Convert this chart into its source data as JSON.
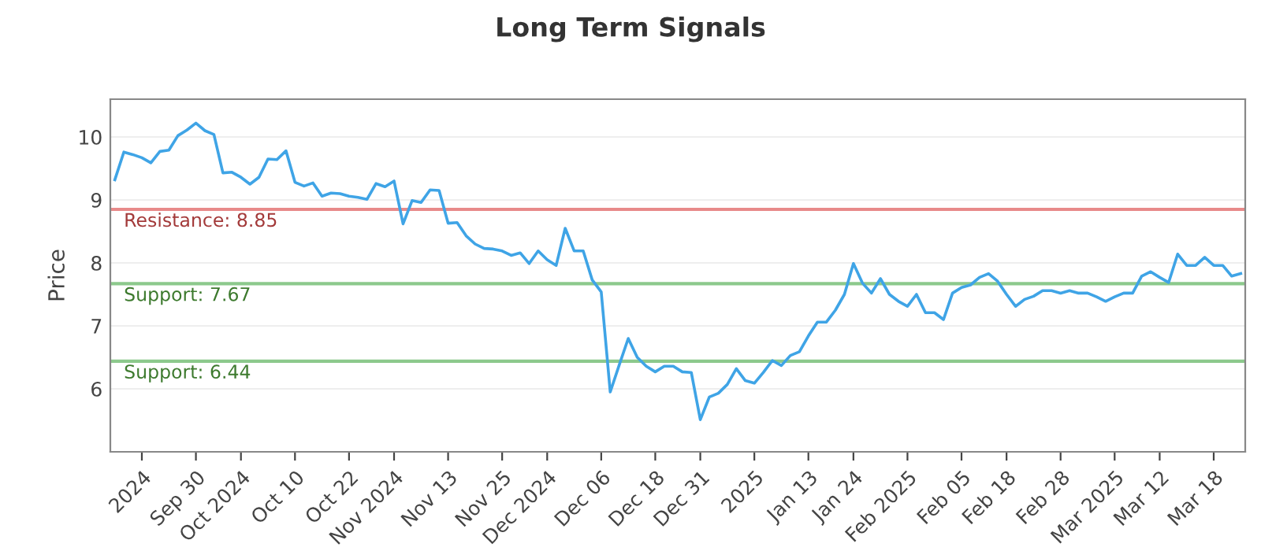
{
  "chart_data": {
    "type": "line",
    "title": "Long Term Signals",
    "ylabel": "Price",
    "categories": [
      null,
      null,
      null,
      "2024",
      null,
      null,
      null,
      null,
      null,
      "Sep 30",
      null,
      null,
      null,
      null,
      "Oct 2024",
      null,
      null,
      null,
      null,
      null,
      "Oct 10",
      null,
      null,
      null,
      null,
      null,
      "Oct 22",
      null,
      null,
      null,
      null,
      "Nov 2024",
      null,
      null,
      null,
      null,
      null,
      "Nov 13",
      null,
      null,
      null,
      null,
      null,
      "Nov 25",
      null,
      null,
      null,
      null,
      "Dec 2024",
      null,
      null,
      null,
      null,
      null,
      "Dec 06",
      null,
      null,
      null,
      null,
      null,
      "Dec 18",
      null,
      null,
      null,
      null,
      "Dec 31",
      null,
      null,
      null,
      null,
      null,
      "2025",
      null,
      null,
      null,
      null,
      null,
      "Jan 13",
      null,
      null,
      null,
      null,
      "Jan 24",
      null,
      null,
      null,
      null,
      null,
      "Feb 2025",
      null,
      null,
      null,
      null,
      null,
      "Feb 05",
      null,
      null,
      null,
      null,
      "Feb 18",
      null,
      null,
      null,
      null,
      null,
      "Feb 28",
      null,
      null,
      null,
      null,
      null,
      "Mar 2025",
      null,
      null,
      null,
      null,
      "Mar 12",
      null,
      null,
      null,
      null,
      null,
      "Mar 18",
      null,
      null,
      null
    ],
    "series": [
      {
        "color": "#3fa4e6",
        "values": [
          9.32,
          9.76,
          9.72,
          9.67,
          9.59,
          9.77,
          9.79,
          10.02,
          10.11,
          10.22,
          10.1,
          10.04,
          9.43,
          9.44,
          9.36,
          9.25,
          9.36,
          9.65,
          9.64,
          9.78,
          9.28,
          9.22,
          9.27,
          9.06,
          9.11,
          9.1,
          9.06,
          9.04,
          9.01,
          9.26,
          9.21,
          9.3,
          8.62,
          8.99,
          8.96,
          9.16,
          9.15,
          8.63,
          8.64,
          8.43,
          8.3,
          8.23,
          8.22,
          8.19,
          8.12,
          8.16,
          7.99,
          8.19,
          8.05,
          7.96,
          8.55,
          8.19,
          8.19,
          7.73,
          7.54,
          5.95,
          6.38,
          6.8,
          6.5,
          6.36,
          6.27,
          6.36,
          6.36,
          6.27,
          6.26,
          5.51,
          5.87,
          5.93,
          6.07,
          6.32,
          6.13,
          6.09,
          6.26,
          6.45,
          6.37,
          6.53,
          6.59,
          6.84,
          7.06,
          7.06,
          7.25,
          7.5,
          7.99,
          7.68,
          7.52,
          7.75,
          7.5,
          7.39,
          7.31,
          7.5,
          7.21,
          7.21,
          7.1,
          7.52,
          7.61,
          7.65,
          7.77,
          7.83,
          7.71,
          7.5,
          7.31,
          7.42,
          7.47,
          7.56,
          7.56,
          7.52,
          7.56,
          7.52,
          7.52,
          7.46,
          7.39,
          7.46,
          7.52,
          7.52,
          7.79,
          7.86,
          7.77,
          7.69,
          8.14,
          7.96,
          7.96,
          8.09,
          7.96,
          7.96,
          7.79,
          7.83
        ]
      }
    ],
    "ylim": [
      5.0,
      10.6
    ],
    "yticks": [
      6,
      7,
      8,
      9,
      10
    ],
    "grid": "y",
    "marker": "none",
    "line_style": "solid",
    "legend": false,
    "ref_lines": [
      {
        "axis": "y",
        "value": 8.85,
        "label": "Resistance: 8.85",
        "color": "#e88a8a"
      },
      {
        "axis": "y",
        "value": 7.67,
        "label": "Support: 7.67",
        "color": "#8cc98c"
      },
      {
        "axis": "y",
        "value": 6.44,
        "label": "Support: 6.44",
        "color": "#8cc98c"
      }
    ]
  }
}
